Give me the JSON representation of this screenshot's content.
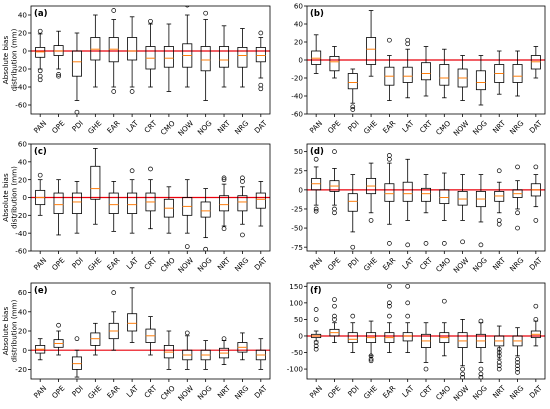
{
  "chart_data": [
    {
      "type": "boxplot",
      "panel_label": "(a)",
      "ylabel": "Absolute bias\ndistribution (mm)",
      "ylim": [
        -70,
        50
      ],
      "yticks": [
        -60,
        -40,
        -20,
        0,
        20,
        40
      ],
      "reference_line": 0,
      "categories": [
        "PAN",
        "OPE",
        "PDI",
        "GHE",
        "EAR",
        "LAT",
        "CRT",
        "CMO",
        "NOW",
        "NOG",
        "NRT",
        "NRG",
        "DAT"
      ],
      "boxes": [
        {
          "whislo": -20,
          "q1": -7,
          "med": -1,
          "q3": 4,
          "whishi": 19,
          "fliers": [
            22,
            -22,
            -28,
            -32
          ]
        },
        {
          "whislo": -20,
          "q1": -5,
          "med": 0,
          "q3": 6,
          "whishi": 22,
          "fliers": [
            -26,
            -28
          ]
        },
        {
          "whislo": -55,
          "q1": -28,
          "med": -12,
          "q3": 0,
          "whishi": 20,
          "fliers": [
            -68
          ]
        },
        {
          "whislo": -40,
          "q1": -10,
          "med": 2,
          "q3": 15,
          "whishi": 40,
          "fliers": []
        },
        {
          "whislo": -40,
          "q1": -12,
          "med": 2,
          "q3": 15,
          "whishi": 35,
          "fliers": [
            45,
            -45
          ]
        },
        {
          "whislo": -40,
          "q1": -10,
          "med": 0,
          "q3": 15,
          "whishi": 38,
          "fliers": [
            -45
          ]
        },
        {
          "whislo": -40,
          "q1": -20,
          "med": -8,
          "q3": 5,
          "whishi": 30,
          "fliers": [
            33
          ]
        },
        {
          "whislo": -45,
          "q1": -18,
          "med": -8,
          "q3": 5,
          "whishi": 30,
          "fliers": []
        },
        {
          "whislo": -40,
          "q1": -18,
          "med": -5,
          "q3": 8,
          "whishi": 40,
          "fliers": [
            51,
            56
          ]
        },
        {
          "whislo": -55,
          "q1": -22,
          "med": -10,
          "q3": 5,
          "whishi": 35,
          "fliers": [
            42
          ]
        },
        {
          "whislo": -40,
          "q1": -18,
          "med": -10,
          "q3": 5,
          "whishi": 28,
          "fliers": []
        },
        {
          "whislo": -40,
          "q1": -18,
          "med": -5,
          "q3": 4,
          "whishi": 25,
          "fliers": []
        },
        {
          "whislo": -30,
          "q1": -12,
          "med": -5,
          "q3": 4,
          "whishi": 15,
          "fliers": [
            20,
            -38,
            -42
          ]
        }
      ]
    },
    {
      "type": "boxplot",
      "panel_label": "(b)",
      "ylabel": "",
      "ylim": [
        -60,
        60
      ],
      "yticks": [
        -60,
        -40,
        -20,
        0,
        20,
        40,
        60
      ],
      "reference_line": 0,
      "categories": [
        "PAN",
        "OPE",
        "PDI",
        "GHE",
        "EAR",
        "LAT",
        "CRT",
        "CMO",
        "NOW",
        "NOG",
        "NRT",
        "NRG",
        "DAT"
      ],
      "boxes": [
        {
          "whislo": -15,
          "q1": -5,
          "med": 2,
          "q3": 10,
          "whishi": 28,
          "fliers": []
        },
        {
          "whislo": -20,
          "q1": -12,
          "med": -2,
          "q3": 4,
          "whishi": 15,
          "fliers": []
        },
        {
          "whislo": -48,
          "q1": -32,
          "med": -25,
          "q3": -15,
          "whishi": -10,
          "fliers": [
            -52,
            -55
          ]
        },
        {
          "whislo": -18,
          "q1": -5,
          "med": 12,
          "q3": 25,
          "whishi": 55,
          "fliers": []
        },
        {
          "whislo": -45,
          "q1": -28,
          "med": -18,
          "q3": -8,
          "whishi": 5,
          "fliers": [
            22
          ]
        },
        {
          "whislo": -42,
          "q1": -25,
          "med": -18,
          "q3": -8,
          "whishi": 12,
          "fliers": [
            18,
            22
          ]
        },
        {
          "whislo": -40,
          "q1": -22,
          "med": -15,
          "q3": -3,
          "whishi": 15,
          "fliers": []
        },
        {
          "whislo": -42,
          "q1": -28,
          "med": -20,
          "q3": -5,
          "whishi": 12,
          "fliers": []
        },
        {
          "whislo": -45,
          "q1": -30,
          "med": -20,
          "q3": -10,
          "whishi": 5,
          "fliers": []
        },
        {
          "whislo": -50,
          "q1": -33,
          "med": -25,
          "q3": -12,
          "whishi": 5,
          "fliers": []
        },
        {
          "whislo": -38,
          "q1": -25,
          "med": -15,
          "q3": -5,
          "whishi": 10,
          "fliers": []
        },
        {
          "whislo": -40,
          "q1": -25,
          "med": -18,
          "q3": -5,
          "whishi": 10,
          "fliers": []
        },
        {
          "whislo": -20,
          "q1": -10,
          "med": -2,
          "q3": 5,
          "whishi": 15,
          "fliers": []
        }
      ]
    },
    {
      "type": "boxplot",
      "panel_label": "(c)",
      "ylabel": "Absolute bias\ndistribution (mm)",
      "ylim": [
        -60,
        60
      ],
      "yticks": [
        -60,
        -40,
        -20,
        0,
        20,
        40,
        60
      ],
      "reference_line": 0,
      "categories": [
        "PAN",
        "OPE",
        "PDI",
        "GHE",
        "EAR",
        "LAT",
        "CRT",
        "CMO",
        "NOW",
        "NOG",
        "NRT",
        "NRG",
        "DAT"
      ],
      "boxes": [
        {
          "whislo": -20,
          "q1": -8,
          "med": 0,
          "q3": 8,
          "whishi": 20,
          "fliers": [
            25
          ]
        },
        {
          "whislo": -42,
          "q1": -18,
          "med": -8,
          "q3": 5,
          "whishi": 20,
          "fliers": []
        },
        {
          "whislo": -40,
          "q1": -18,
          "med": -5,
          "q3": 5,
          "whishi": 18,
          "fliers": []
        },
        {
          "whislo": -30,
          "q1": -2,
          "med": 10,
          "q3": 35,
          "whishi": 55,
          "fliers": []
        },
        {
          "whislo": -38,
          "q1": -18,
          "med": -8,
          "q3": 5,
          "whishi": 18,
          "fliers": []
        },
        {
          "whislo": -40,
          "q1": -18,
          "med": -8,
          "q3": 5,
          "whishi": 20,
          "fliers": [
            30
          ]
        },
        {
          "whislo": -35,
          "q1": -15,
          "med": -5,
          "q3": 5,
          "whishi": 20,
          "fliers": [
            32
          ]
        },
        {
          "whislo": -40,
          "q1": -22,
          "med": -12,
          "q3": -2,
          "whishi": 12,
          "fliers": []
        },
        {
          "whislo": -40,
          "q1": -20,
          "med": -10,
          "q3": 0,
          "whishi": 20,
          "fliers": [
            -55
          ]
        },
        {
          "whislo": -45,
          "q1": -22,
          "med": -15,
          "q3": -5,
          "whishi": 10,
          "fliers": [
            -58
          ]
        },
        {
          "whislo": -32,
          "q1": -15,
          "med": -8,
          "q3": 2,
          "whishi": 15,
          "fliers": [
            20,
            22,
            -35
          ]
        },
        {
          "whislo": -30,
          "q1": -15,
          "med": -5,
          "q3": 2,
          "whishi": 12,
          "fliers": [
            18,
            22,
            -42
          ]
        },
        {
          "whislo": -32,
          "q1": -12,
          "med": -2,
          "q3": 5,
          "whishi": 18,
          "fliers": []
        }
      ]
    },
    {
      "type": "boxplot",
      "panel_label": "(d)",
      "ylabel": "",
      "ylim": [
        -80,
        60
      ],
      "yticks": [
        -75,
        -50,
        -25,
        0,
        25,
        50
      ],
      "reference_line": 0,
      "categories": [
        "PAN",
        "OPE",
        "PDI",
        "GHE",
        "EAR",
        "LAT",
        "CRT",
        "CMO",
        "NOW",
        "NOG",
        "NRT",
        "NRG",
        "DAT"
      ],
      "boxes": [
        {
          "whislo": -20,
          "q1": 0,
          "med": 8,
          "q3": 15,
          "whishi": 30,
          "fliers": [
            -25,
            -28,
            40
          ]
        },
        {
          "whislo": -20,
          "q1": -2,
          "med": 5,
          "q3": 12,
          "whishi": 28,
          "fliers": [
            -25,
            -30,
            50
          ]
        },
        {
          "whislo": -55,
          "q1": -28,
          "med": -15,
          "q3": -5,
          "whishi": 20,
          "fliers": [
            -75
          ]
        },
        {
          "whislo": -30,
          "q1": -5,
          "med": 5,
          "q3": 15,
          "whishi": 35,
          "fliers": [
            -40
          ]
        },
        {
          "whislo": -45,
          "q1": -15,
          "med": -5,
          "q3": 8,
          "whishi": 35,
          "fliers": [
            45,
            40,
            -70
          ]
        },
        {
          "whislo": -40,
          "q1": -15,
          "med": -5,
          "q3": 10,
          "whishi": 40,
          "fliers": [
            -72
          ]
        },
        {
          "whislo": -30,
          "q1": -15,
          "med": -5,
          "q3": 2,
          "whishi": 20,
          "fliers": [
            -70
          ]
        },
        {
          "whislo": -40,
          "q1": -18,
          "med": -10,
          "q3": 0,
          "whishi": 22,
          "fliers": [
            -70
          ]
        },
        {
          "whislo": -40,
          "q1": -20,
          "med": -12,
          "q3": -2,
          "whishi": 20,
          "fliers": [
            -68
          ]
        },
        {
          "whislo": -42,
          "q1": -22,
          "med": -12,
          "q3": -2,
          "whishi": 20,
          "fliers": [
            -72
          ]
        },
        {
          "whislo": -30,
          "q1": -15,
          "med": -8,
          "q3": -2,
          "whishi": 10,
          "fliers": [
            25,
            -40,
            -45
          ]
        },
        {
          "whislo": -25,
          "q1": -10,
          "med": -5,
          "q3": 0,
          "whishi": 12,
          "fliers": [
            30,
            -30,
            -50
          ]
        },
        {
          "whislo": -22,
          "q1": -8,
          "med": 0,
          "q3": 8,
          "whishi": 20,
          "fliers": [
            30,
            -40
          ]
        }
      ]
    },
    {
      "type": "boxplot",
      "panel_label": "(e)",
      "ylabel": "Absolute bias\ndistribution (mm)",
      "ylim": [
        -30,
        70
      ],
      "yticks": [
        -20,
        0,
        20,
        40,
        60
      ],
      "reference_line": 0,
      "categories": [
        "PAN",
        "OPE",
        "PDI",
        "GHE",
        "EAR",
        "LAT",
        "CRT",
        "CMO",
        "NOW",
        "NOG",
        "NRT",
        "NRG",
        "DAT"
      ],
      "boxes": [
        {
          "whislo": -10,
          "q1": -3,
          "med": 1,
          "q3": 5,
          "whishi": 12,
          "fliers": []
        },
        {
          "whislo": -5,
          "q1": 3,
          "med": 7,
          "q3": 11,
          "whishi": 20,
          "fliers": [
            26
          ]
        },
        {
          "whislo": -28,
          "q1": -20,
          "med": -14,
          "q3": -7,
          "whishi": 0,
          "fliers": [
            12
          ]
        },
        {
          "whislo": -5,
          "q1": 5,
          "med": 12,
          "q3": 18,
          "whishi": 28,
          "fliers": []
        },
        {
          "whislo": 0,
          "q1": 12,
          "med": 20,
          "q3": 28,
          "whishi": 40,
          "fliers": [
            60
          ]
        },
        {
          "whislo": 8,
          "q1": 20,
          "med": 28,
          "q3": 38,
          "whishi": 65,
          "fliers": []
        },
        {
          "whislo": -5,
          "q1": 8,
          "med": 15,
          "q3": 22,
          "whishi": 35,
          "fliers": []
        },
        {
          "whislo": -20,
          "q1": -8,
          "med": -2,
          "q3": 5,
          "whishi": 20,
          "fliers": []
        },
        {
          "whislo": -20,
          "q1": -10,
          "med": -5,
          "q3": 0,
          "whishi": 15,
          "fliers": [
            18
          ]
        },
        {
          "whislo": -20,
          "q1": -10,
          "med": -5,
          "q3": 0,
          "whishi": 10,
          "fliers": []
        },
        {
          "whislo": -15,
          "q1": -8,
          "med": -3,
          "q3": 2,
          "whishi": 10,
          "fliers": [
            12
          ]
        },
        {
          "whislo": -10,
          "q1": -2,
          "med": 3,
          "q3": 8,
          "whishi": 18,
          "fliers": []
        },
        {
          "whislo": -20,
          "q1": -10,
          "med": -5,
          "q3": 0,
          "whishi": 12,
          "fliers": []
        }
      ]
    },
    {
      "type": "boxplot",
      "panel_label": "(f)",
      "ylabel": "",
      "ylim": [
        -130,
        160
      ],
      "yticks": [
        -100,
        -50,
        0,
        50,
        100,
        150
      ],
      "reference_line": 0,
      "categories": [
        "PAN",
        "OPE",
        "PDI",
        "GHE",
        "EAR",
        "LAT",
        "CRT",
        "CMO",
        "NOW",
        "NOG",
        "NRT",
        "NRG",
        "DAT"
      ],
      "boxes": [
        {
          "whislo": -15,
          "q1": -5,
          "med": 0,
          "q3": 5,
          "whishi": 15,
          "fliers": [
            80,
            50,
            -20,
            -30,
            -40
          ]
        },
        {
          "whislo": -20,
          "q1": 0,
          "med": 10,
          "q3": 20,
          "whishi": 40,
          "fliers": [
            50,
            60,
            90,
            110
          ]
        },
        {
          "whislo": -50,
          "q1": -20,
          "med": -10,
          "q3": 10,
          "whishi": 40,
          "fliers": [
            60
          ]
        },
        {
          "whislo": -60,
          "q1": -20,
          "med": -5,
          "q3": 10,
          "whishi": 45,
          "fliers": [
            -60,
            -70,
            -75
          ]
        },
        {
          "whislo": -50,
          "q1": -20,
          "med": -5,
          "q3": 10,
          "whishi": 40,
          "fliers": [
            60,
            90,
            100,
            150
          ]
        },
        {
          "whislo": -50,
          "q1": -15,
          "med": 0,
          "q3": 10,
          "whishi": 40,
          "fliers": [
            60,
            100,
            150
          ]
        },
        {
          "whislo": -80,
          "q1": -35,
          "med": -15,
          "q3": 5,
          "whishi": 40,
          "fliers": [
            -100
          ]
        },
        {
          "whislo": -60,
          "q1": -20,
          "med": -5,
          "q3": 10,
          "whishi": 40,
          "fliers": [
            105
          ]
        },
        {
          "whislo": -90,
          "q1": -35,
          "med": -15,
          "q3": 10,
          "whishi": 50,
          "fliers": [
            -100,
            -115,
            -125
          ]
        },
        {
          "whislo": -80,
          "q1": -35,
          "med": -15,
          "q3": 5,
          "whishi": 40,
          "fliers": [
            -100,
            -115,
            -125,
            45
          ]
        },
        {
          "whislo": -70,
          "q1": -30,
          "med": -15,
          "q3": 0,
          "whishi": 30,
          "fliers": [
            -40,
            -50,
            -60,
            -80,
            -90,
            -100
          ]
        },
        {
          "whislo": -60,
          "q1": -30,
          "med": -15,
          "q3": 0,
          "whishi": 25,
          "fliers": [
            -70,
            -80,
            -90,
            -100,
            -110
          ]
        },
        {
          "whislo": -30,
          "q1": -5,
          "med": 5,
          "q3": 15,
          "whishi": 45,
          "fliers": [
            50,
            90
          ]
        }
      ]
    }
  ]
}
